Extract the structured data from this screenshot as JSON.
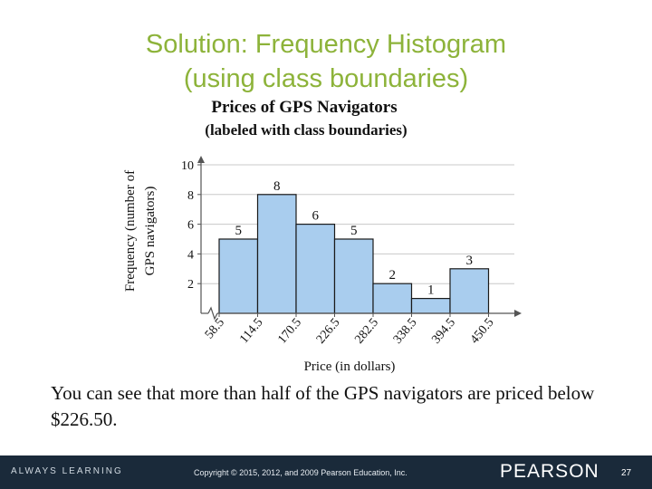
{
  "slide": {
    "title_line1": "Solution: Frequency Histogram",
    "title_line2": "(using class boundaries)",
    "body_text": "You can see that more than half of the GPS navigators are priced below $226.50."
  },
  "footer": {
    "tagline": "ALWAYS LEARNING",
    "copyright": "Copyright © 2015, 2012, and 2009 Pearson Education, Inc.",
    "brand": "PEARSON",
    "page_number": "27"
  },
  "colors": {
    "title": "#8db33a",
    "bar_fill": "#a9cdee",
    "bar_stroke": "#1a1a1a",
    "footer_bg": "#1a2a3a"
  },
  "chart_data": {
    "type": "bar",
    "title_line1": "Prices of GPS Navigators",
    "title_line2": "(labeled with class boundaries)",
    "xlabel": "Price (in dollars)",
    "ylabel_line1": "Frequency (number of",
    "ylabel_line2": "GPS navigators)",
    "boundaries": [
      58.5,
      114.5,
      170.5,
      226.5,
      282.5,
      338.5,
      394.5,
      450.5
    ],
    "boundary_labels": [
      "58.5",
      "114.5",
      "170.5",
      "226.5",
      "282.5",
      "338.5",
      "394.5",
      "450.5"
    ],
    "values": [
      5,
      8,
      6,
      5,
      2,
      1,
      3
    ],
    "yticks": [
      2,
      4,
      6,
      8,
      10
    ],
    "ylim": [
      0,
      10
    ],
    "grid": true
  }
}
